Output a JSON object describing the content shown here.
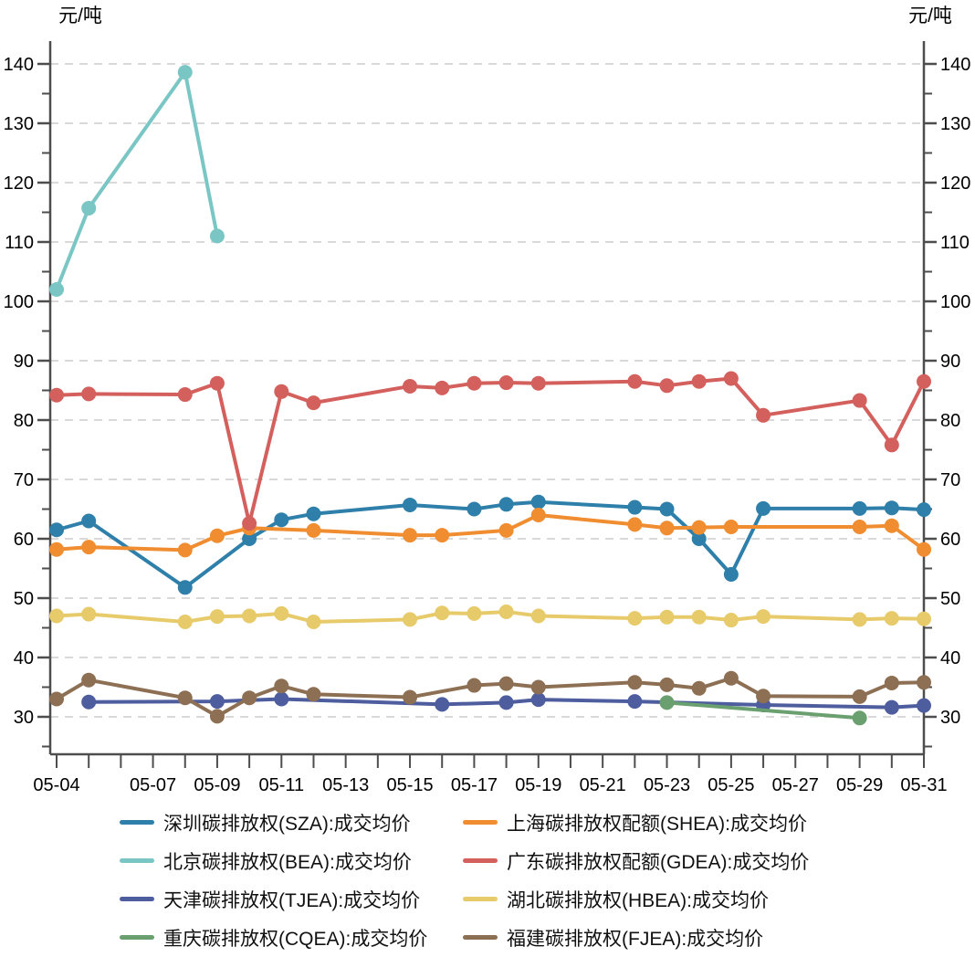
{
  "chart_data": {
    "type": "line",
    "unit_label_left": "元/吨",
    "unit_label_right": "元/吨",
    "grid": "horizontal-dashed",
    "legend_position": "bottom",
    "axis_color": "#4d4d4d",
    "grid_color": "#d9d9d9",
    "ylim": [
      24,
      143
    ],
    "y_major_ticks": [
      30,
      40,
      50,
      60,
      70,
      80,
      90,
      100,
      110,
      120,
      130,
      140
    ],
    "y_minor_step": 5,
    "x_dates": [
      "05-04",
      "05-05",
      "05-06",
      "05-07",
      "05-08",
      "05-09",
      "05-10",
      "05-11",
      "05-12",
      "05-13",
      "05-14",
      "05-15",
      "05-16",
      "05-17",
      "05-18",
      "05-19",
      "05-20",
      "05-21",
      "05-22",
      "05-23",
      "05-24",
      "05-25",
      "05-26",
      "05-27",
      "05-28",
      "05-29",
      "05-30",
      "05-31"
    ],
    "x_tick_labels": [
      "05-04",
      "05-07",
      "05-09",
      "05-11",
      "05-13",
      "05-15",
      "05-17",
      "05-19",
      "05-21",
      "05-23",
      "05-25",
      "05-27",
      "05-29",
      "05-31"
    ],
    "series": [
      {
        "id": "SZA",
        "name": "深圳碳排放权(SZA):成交均价",
        "color": "#2e7fa9",
        "points": [
          [
            "05-04",
            61.5
          ],
          [
            "05-05",
            63.0
          ],
          [
            "05-08",
            51.8
          ],
          [
            "05-10",
            60.0
          ],
          [
            "05-11",
            63.2
          ],
          [
            "05-12",
            64.2
          ],
          [
            "05-15",
            65.7
          ],
          [
            "05-17",
            65.0
          ],
          [
            "05-18",
            65.8
          ],
          [
            "05-19",
            66.2
          ],
          [
            "05-22",
            65.3
          ],
          [
            "05-23",
            65.0
          ],
          [
            "05-24",
            60.0
          ],
          [
            "05-25",
            54.0
          ],
          [
            "05-26",
            65.1
          ],
          [
            "05-29",
            65.1
          ],
          [
            "05-30",
            65.2
          ],
          [
            "05-31",
            64.9
          ]
        ]
      },
      {
        "id": "SHEA",
        "name": "上海碳排放权配额(SHEA):成交均价",
        "color": "#ef8d30",
        "points": [
          [
            "05-04",
            58.2
          ],
          [
            "05-05",
            58.6
          ],
          [
            "05-08",
            58.1
          ],
          [
            "05-09",
            60.5
          ],
          [
            "05-10",
            61.8
          ],
          [
            "05-12",
            61.4
          ],
          [
            "05-15",
            60.6
          ],
          [
            "05-16",
            60.6
          ],
          [
            "05-18",
            61.4
          ],
          [
            "05-19",
            64.0
          ],
          [
            "05-22",
            62.4
          ],
          [
            "05-23",
            61.8
          ],
          [
            "05-24",
            61.9
          ],
          [
            "05-25",
            62.0
          ],
          [
            "05-29",
            62.0
          ],
          [
            "05-30",
            62.2
          ],
          [
            "05-31",
            58.2
          ]
        ]
      },
      {
        "id": "BEA",
        "name": "北京碳排放权(BEA):成交均价",
        "color": "#79c6c5",
        "points": [
          [
            "05-04",
            102.0
          ],
          [
            "05-05",
            115.7
          ],
          [
            "05-08",
            138.6
          ],
          [
            "05-09",
            111.0
          ]
        ]
      },
      {
        "id": "GDEA",
        "name": "广东碳排放权配额(GDEA):成交均价",
        "color": "#d3605d",
        "points": [
          [
            "05-04",
            84.2
          ],
          [
            "05-05",
            84.4
          ],
          [
            "05-08",
            84.3
          ],
          [
            "05-09",
            86.2
          ],
          [
            "05-10",
            62.6
          ],
          [
            "05-11",
            84.8
          ],
          [
            "05-12",
            82.9
          ],
          [
            "05-15",
            85.7
          ],
          [
            "05-16",
            85.4
          ],
          [
            "05-17",
            86.2
          ],
          [
            "05-18",
            86.3
          ],
          [
            "05-19",
            86.2
          ],
          [
            "05-22",
            86.5
          ],
          [
            "05-23",
            85.8
          ],
          [
            "05-24",
            86.5
          ],
          [
            "05-25",
            87.0
          ],
          [
            "05-26",
            80.8
          ],
          [
            "05-29",
            83.3
          ],
          [
            "05-30",
            75.8
          ],
          [
            "05-31",
            86.5
          ]
        ]
      },
      {
        "id": "TJEA",
        "name": "天津碳排放权(TJEA):成交均价",
        "color": "#4d5d9e",
        "points": [
          [
            "05-05",
            32.5
          ],
          [
            "05-09",
            32.6
          ],
          [
            "05-11",
            33.0
          ],
          [
            "05-16",
            32.1
          ],
          [
            "05-18",
            32.4
          ],
          [
            "05-19",
            32.9
          ],
          [
            "05-22",
            32.6
          ],
          [
            "05-26",
            32.0
          ],
          [
            "05-30",
            31.6
          ],
          [
            "05-31",
            31.9
          ]
        ]
      },
      {
        "id": "HBEA",
        "name": "湖北碳排放权(HBEA):成交均价",
        "color": "#e7cb6b",
        "points": [
          [
            "05-04",
            47.0
          ],
          [
            "05-05",
            47.3
          ],
          [
            "05-08",
            46.0
          ],
          [
            "05-09",
            46.9
          ],
          [
            "05-10",
            47.0
          ],
          [
            "05-11",
            47.4
          ],
          [
            "05-12",
            46.0
          ],
          [
            "05-15",
            46.4
          ],
          [
            "05-16",
            47.5
          ],
          [
            "05-17",
            47.4
          ],
          [
            "05-18",
            47.7
          ],
          [
            "05-19",
            47.0
          ],
          [
            "05-22",
            46.6
          ],
          [
            "05-23",
            46.8
          ],
          [
            "05-24",
            46.8
          ],
          [
            "05-25",
            46.3
          ],
          [
            "05-26",
            46.9
          ],
          [
            "05-29",
            46.4
          ],
          [
            "05-30",
            46.6
          ],
          [
            "05-31",
            46.5
          ]
        ]
      },
      {
        "id": "CQEA",
        "name": "重庆碳排放权(CQEA):成交均价",
        "color": "#6aa06f",
        "points": [
          [
            "05-23",
            32.4
          ],
          [
            "05-29",
            29.8
          ]
        ]
      },
      {
        "id": "FJEA",
        "name": "福建碳排放权(FJEA):成交均价",
        "color": "#8d7054",
        "points": [
          [
            "05-04",
            33.0
          ],
          [
            "05-05",
            36.2
          ],
          [
            "05-08",
            33.2
          ],
          [
            "05-09",
            30.1
          ],
          [
            "05-10",
            33.2
          ],
          [
            "05-11",
            35.2
          ],
          [
            "05-12",
            33.8
          ],
          [
            "05-15",
            33.3
          ],
          [
            "05-17",
            35.3
          ],
          [
            "05-18",
            35.6
          ],
          [
            "05-19",
            35.0
          ],
          [
            "05-22",
            35.8
          ],
          [
            "05-23",
            35.4
          ],
          [
            "05-24",
            34.8
          ],
          [
            "05-25",
            36.5
          ],
          [
            "05-26",
            33.5
          ],
          [
            "05-29",
            33.4
          ],
          [
            "05-30",
            35.7
          ],
          [
            "05-31",
            35.8
          ]
        ]
      }
    ]
  }
}
